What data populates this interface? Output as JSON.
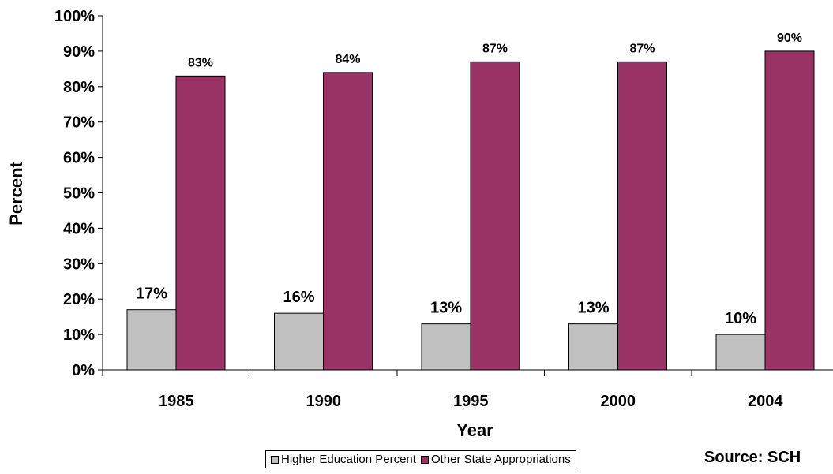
{
  "chart_data": {
    "type": "bar",
    "title": "",
    "xlabel": "Year",
    "ylabel": "Percent",
    "categories": [
      "1985",
      "1990",
      "1995",
      "2000",
      "2004"
    ],
    "series": [
      {
        "name": "Higher Education Percent",
        "color": "#c0c0c0",
        "values": [
          17,
          16,
          13,
          13,
          10
        ],
        "labels": [
          "17%",
          "16%",
          "13%",
          "13%",
          "10%"
        ]
      },
      {
        "name": "Other State Appropriations",
        "color": "#993366",
        "values": [
          83,
          84,
          87,
          87,
          90
        ],
        "labels": [
          "83%",
          "84%",
          "87%",
          "87%",
          "90%"
        ]
      }
    ],
    "ylim": [
      0,
      100
    ],
    "yticks": [
      0,
      10,
      20,
      30,
      40,
      50,
      60,
      70,
      80,
      90,
      100
    ],
    "ytick_labels": [
      "0%",
      "10%",
      "20%",
      "30%",
      "40%",
      "50%",
      "60%",
      "70%",
      "80%",
      "90%",
      "100%"
    ],
    "grid": false,
    "legend_position": "bottom"
  },
  "source_note": "Source: SCH"
}
